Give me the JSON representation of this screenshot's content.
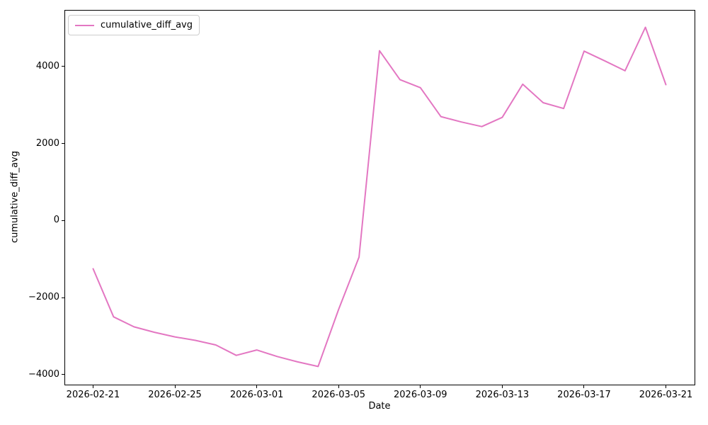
{
  "chart_data": {
    "type": "line",
    "title": "",
    "xlabel": "Date",
    "ylabel": "cumulative_diff_avg",
    "grid": false,
    "legend": {
      "location": "upper left",
      "label": "cumulative_diff_avg"
    },
    "line_color": "#e377c2",
    "x": [
      "2026-02-21",
      "2026-02-22",
      "2026-02-23",
      "2026-02-24",
      "2026-02-25",
      "2026-02-26",
      "2026-02-27",
      "2026-02-28",
      "2026-03-01",
      "2026-03-02",
      "2026-03-03",
      "2026-03-04",
      "2026-03-05",
      "2026-03-06",
      "2026-03-07",
      "2026-03-08",
      "2026-03-09",
      "2026-03-10",
      "2026-03-11",
      "2026-03-12",
      "2026-03-13",
      "2026-03-14",
      "2026-03-15",
      "2026-03-16",
      "2026-03-17",
      "2026-03-18",
      "2026-03-19",
      "2026-03-20",
      "2026-03-21"
    ],
    "y": [
      -1250,
      -2500,
      -2760,
      -2900,
      -3020,
      -3110,
      -3230,
      -3500,
      -3360,
      -3530,
      -3670,
      -3790,
      -2310,
      -950,
      4410,
      3660,
      3450,
      2700,
      2560,
      2440,
      2680,
      3540,
      3060,
      2910,
      4400,
      4150,
      3890,
      5020,
      3530
    ],
    "x_ticks": [
      "2026-02-21",
      "2026-02-25",
      "2026-03-01",
      "2026-03-05",
      "2026-03-09",
      "2026-03-13",
      "2026-03-17",
      "2026-03-21"
    ],
    "y_ticks": [
      -4000,
      -2000,
      0,
      2000,
      4000
    ],
    "axes": {
      "xlim_day_offsets": [
        -1.4,
        29.4
      ],
      "ylim": [
        -4260,
        5470
      ]
    }
  }
}
